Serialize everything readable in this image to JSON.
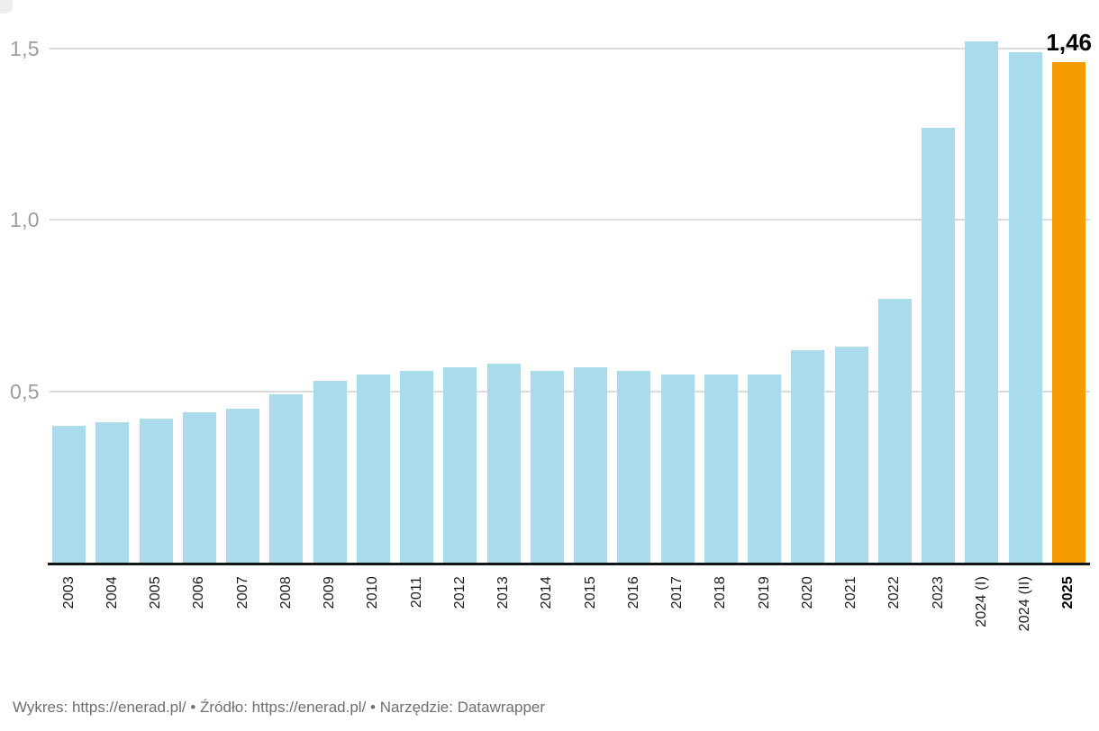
{
  "chart_data": {
    "type": "bar",
    "categories": [
      "2003",
      "2004",
      "2005",
      "2006",
      "2007",
      "2008",
      "2009",
      "2010",
      "2011",
      "2012",
      "2013",
      "2014",
      "2015",
      "2016",
      "2017",
      "2018",
      "2019",
      "2020",
      "2021",
      "2022",
      "2023",
      "2024 (I)",
      "2024 (II)",
      "2025"
    ],
    "values": [
      0.4,
      0.41,
      0.42,
      0.44,
      0.45,
      0.49,
      0.53,
      0.55,
      0.56,
      0.57,
      0.58,
      0.56,
      0.57,
      0.56,
      0.55,
      0.55,
      0.55,
      0.62,
      0.63,
      0.77,
      1.27,
      1.52,
      1.49,
      1.46
    ],
    "title": "",
    "xlabel": "",
    "ylabel": "",
    "ylim": [
      0,
      1.56
    ],
    "grid": "horizontal",
    "legend": "none",
    "y_axis_ticks": [
      {
        "value": 0.5,
        "label": "0,5"
      },
      {
        "value": 1.0,
        "label": "1,0"
      },
      {
        "value": 1.5,
        "label": "1,5"
      }
    ],
    "highlight_index": 23,
    "bold_category": "2025",
    "annotation": "1,46",
    "colors": {
      "bar": "#a9dbec",
      "highlight": "#f79c00",
      "gridline": "#dcdcdc",
      "axis_line": "#151517",
      "y_tick_text": "#9d9d9d",
      "x_tick_text": "#1a1a1a"
    }
  },
  "footer": {
    "chart_label": "Wykres: ",
    "chart_url": "https://enerad.pl/",
    "separator1": " • ",
    "source_label": "Źródło: ",
    "source_url": "https://enerad.pl/",
    "separator2": " • ",
    "tool_label": "Narzędzie: ",
    "tool_name": "Datawrapper"
  }
}
